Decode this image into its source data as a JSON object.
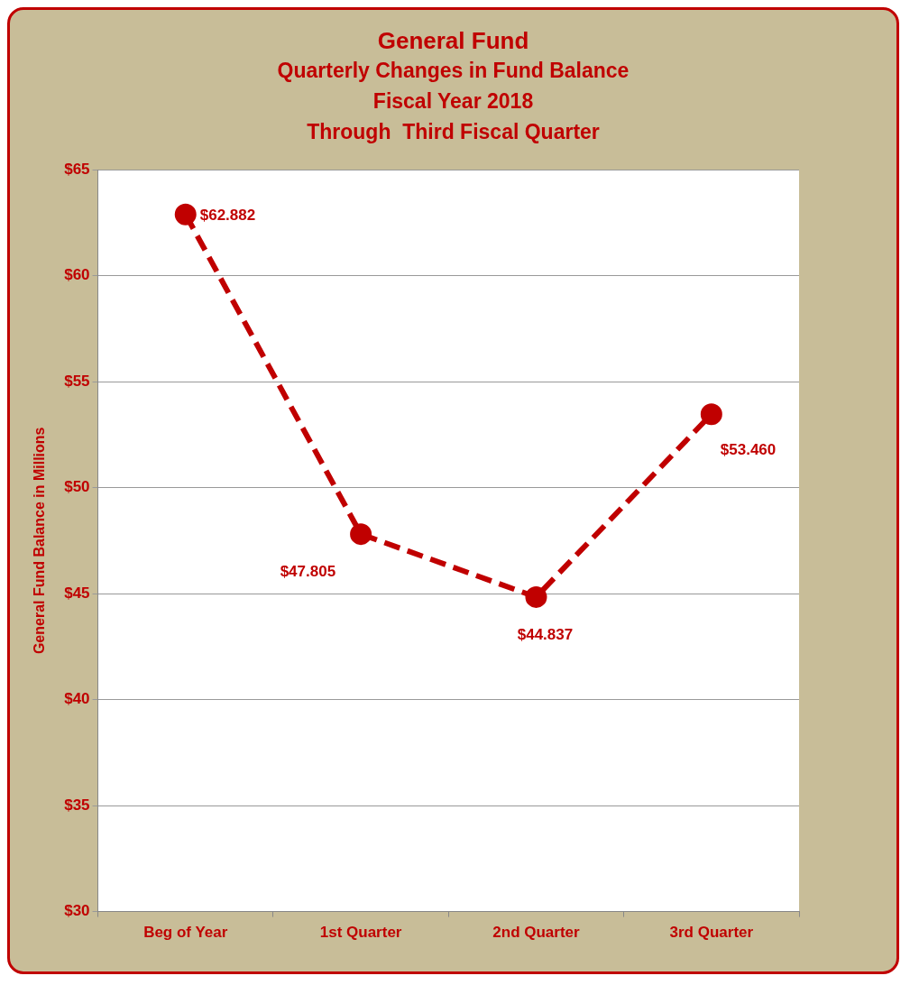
{
  "chart_data": {
    "type": "line",
    "title": "General Fund",
    "subtitle": "Quarterly Changes in Fund Balance\nFiscal Year 2018\nThrough  Third Fiscal Quarter",
    "ylabel": "General Fund Balance in Millions",
    "categories": [
      "Beg of Year",
      "1st Quarter",
      "2nd Quarter",
      "3rd Quarter"
    ],
    "series": [
      {
        "color": "#c00000",
        "values": [
          62.882,
          47.805,
          44.837,
          53.46
        ],
        "value_labels": [
          "$62.882",
          "$47.805",
          "$44.837",
          "$53.460"
        ]
      }
    ],
    "ylim": [
      30,
      65
    ],
    "yticks": [
      {
        "value": 30,
        "label": "$30"
      },
      {
        "value": 35,
        "label": "$35"
      },
      {
        "value": 40,
        "label": "$40"
      },
      {
        "value": 45,
        "label": "$45"
      },
      {
        "value": 50,
        "label": "$50"
      },
      {
        "value": 55,
        "label": "$55"
      },
      {
        "value": 60,
        "label": "$60"
      },
      {
        "value": 65,
        "label": "$65"
      }
    ],
    "grid": "y",
    "legend": false,
    "marker": "circle",
    "line_style": "dashed"
  }
}
